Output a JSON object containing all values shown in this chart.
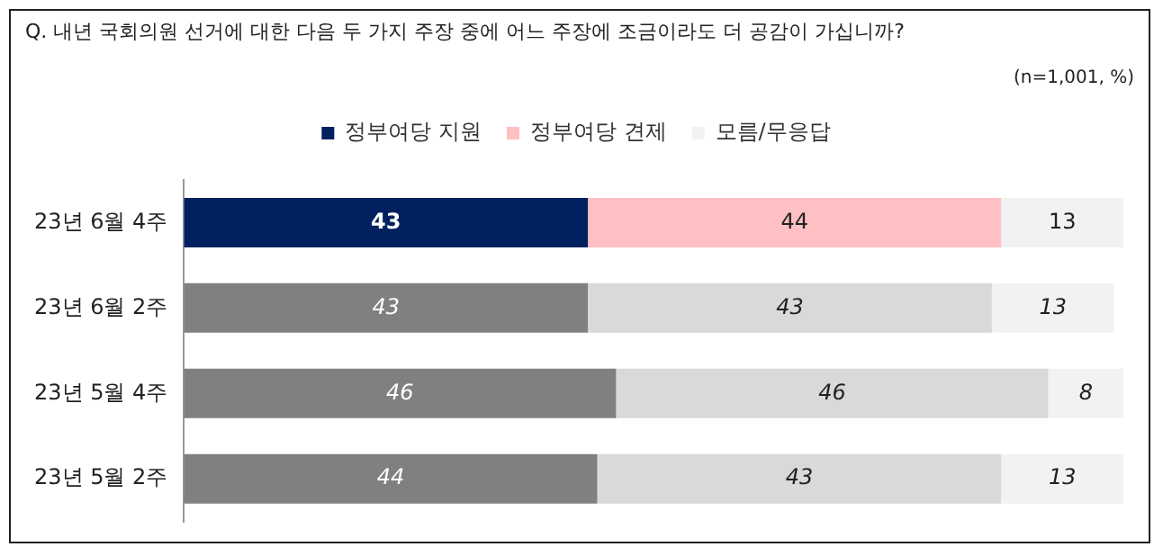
{
  "chart_data": {
    "type": "bar",
    "orientation": "horizontal",
    "stacked": true,
    "title": "Q. 내년 국회의원 선거에 대한 다음 두 가지 주장 중에 어느 주장에 조금이라도 더 공감이 가십니까?",
    "annotations": [
      "(n=1,001, %)"
    ],
    "categories": [
      "23년 6월 4주",
      "23년 6월 2주",
      "23년 5월 4주",
      "23년 5월 2주"
    ],
    "series": [
      {
        "name": "정부여당 지원",
        "color": "#002060",
        "colors": [
          "#002060",
          "#808080",
          "#808080",
          "#808080"
        ],
        "values": [
          43,
          43,
          46,
          44
        ]
      },
      {
        "name": "정부여당 견제",
        "color": "#ffc0c4",
        "colors": [
          "#ffc0c4",
          "#d9d9d9",
          "#d9d9d9",
          "#d9d9d9"
        ],
        "values": [
          44,
          43,
          46,
          43
        ]
      },
      {
        "name": "모름/무응답",
        "color": "#f2f2f2",
        "colors": [
          "#f2f2f2",
          "#f2f2f2",
          "#f2f2f2",
          "#f2f2f2"
        ],
        "values": [
          13,
          13,
          8,
          13
        ]
      }
    ],
    "data_labels": true,
    "legend": "top"
  }
}
